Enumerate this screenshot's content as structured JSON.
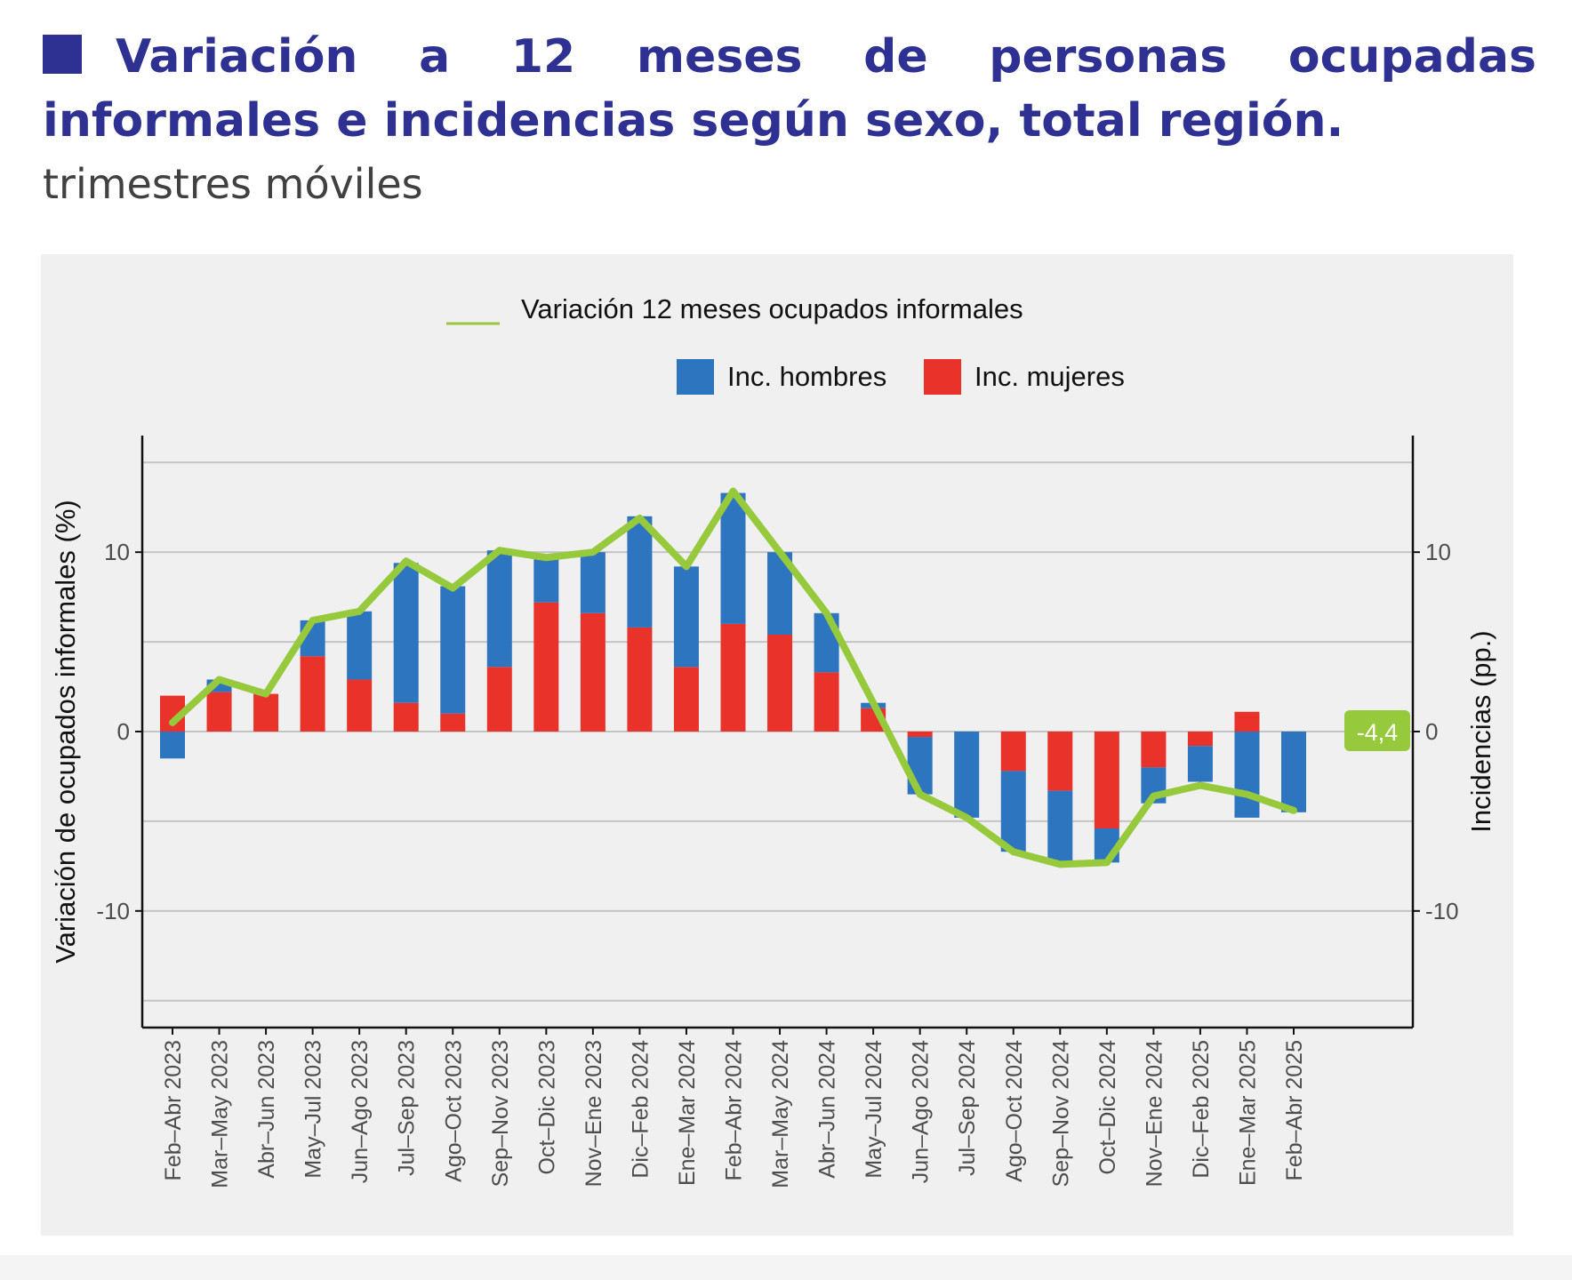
{
  "header": {
    "title": "Variación a 12 meses de personas ocupadas informales e incidencias según sexo, total región.",
    "subtitle": "trimestres móviles"
  },
  "chart_data": {
    "type": "bar",
    "stacked": true,
    "legend": {
      "line_label": "Variación 12 meses ocupados informales",
      "position": "top"
    },
    "categories": [
      "Feb–Abr 2023",
      "Mar–May 2023",
      "Abr–Jun 2023",
      "May–Jul 2023",
      "Jun–Ago 2023",
      "Jul–Sep 2023",
      "Ago–Oct 2023",
      "Sep–Nov 2023",
      "Oct–Dic 2023",
      "Nov–Ene 2023",
      "Dic–Feb 2024",
      "Ene–Mar 2024",
      "Feb–Abr 2024",
      "Mar–May 2024",
      "Abr–Jun 2024",
      "May–Jul 2024",
      "Jun–Ago 2024",
      "Jul–Sep 2024",
      "Ago–Oct 2024",
      "Sep–Nov 2024",
      "Oct–Dic 2024",
      "Nov–Ene 2024",
      "Dic–Feb 2025",
      "Ene–Mar 2025",
      "Feb–Abr 2025"
    ],
    "series": [
      {
        "name": "Inc. hombres",
        "color": "#2e75c0",
        "values": [
          -1.5,
          0.7,
          0.0,
          2.0,
          3.8,
          7.8,
          7.1,
          6.5,
          2.4,
          3.4,
          6.2,
          5.6,
          7.3,
          4.6,
          3.3,
          0.3,
          -3.2,
          -4.8,
          -4.5,
          -4.0,
          -1.9,
          -2.0,
          -2.0,
          -4.8,
          -4.5
        ]
      },
      {
        "name": "Inc. mujeres",
        "color": "#e8322a",
        "values": [
          2.0,
          2.2,
          2.1,
          4.2,
          2.9,
          1.6,
          1.0,
          3.6,
          7.2,
          6.6,
          5.8,
          3.6,
          6.0,
          5.4,
          3.3,
          1.3,
          -0.3,
          0.0,
          -2.2,
          -3.3,
          -5.4,
          -2.0,
          -0.8,
          1.1,
          0.0
        ]
      },
      {
        "name": "Variación 12 meses ocupados informales",
        "type": "line",
        "color": "#97c93d",
        "values": [
          0.5,
          2.9,
          2.1,
          6.2,
          6.7,
          9.5,
          8.0,
          10.1,
          9.7,
          10.0,
          11.9,
          9.2,
          13.4,
          10.0,
          6.6,
          1.6,
          -3.5,
          -4.8,
          -6.7,
          -7.4,
          -7.3,
          -3.6,
          -3.0,
          -3.5,
          -4.4
        ]
      }
    ],
    "last_value_label": "-4,4",
    "ylabel": "Variación de ocupados informales (%)",
    "ylabel_right": "Incidencias (pp.)",
    "ylim": [
      -16.5,
      16.5
    ],
    "yticks": [
      -10,
      0,
      10
    ],
    "ytick_labels": [
      "-10",
      "0",
      "10"
    ],
    "grid": true
  }
}
